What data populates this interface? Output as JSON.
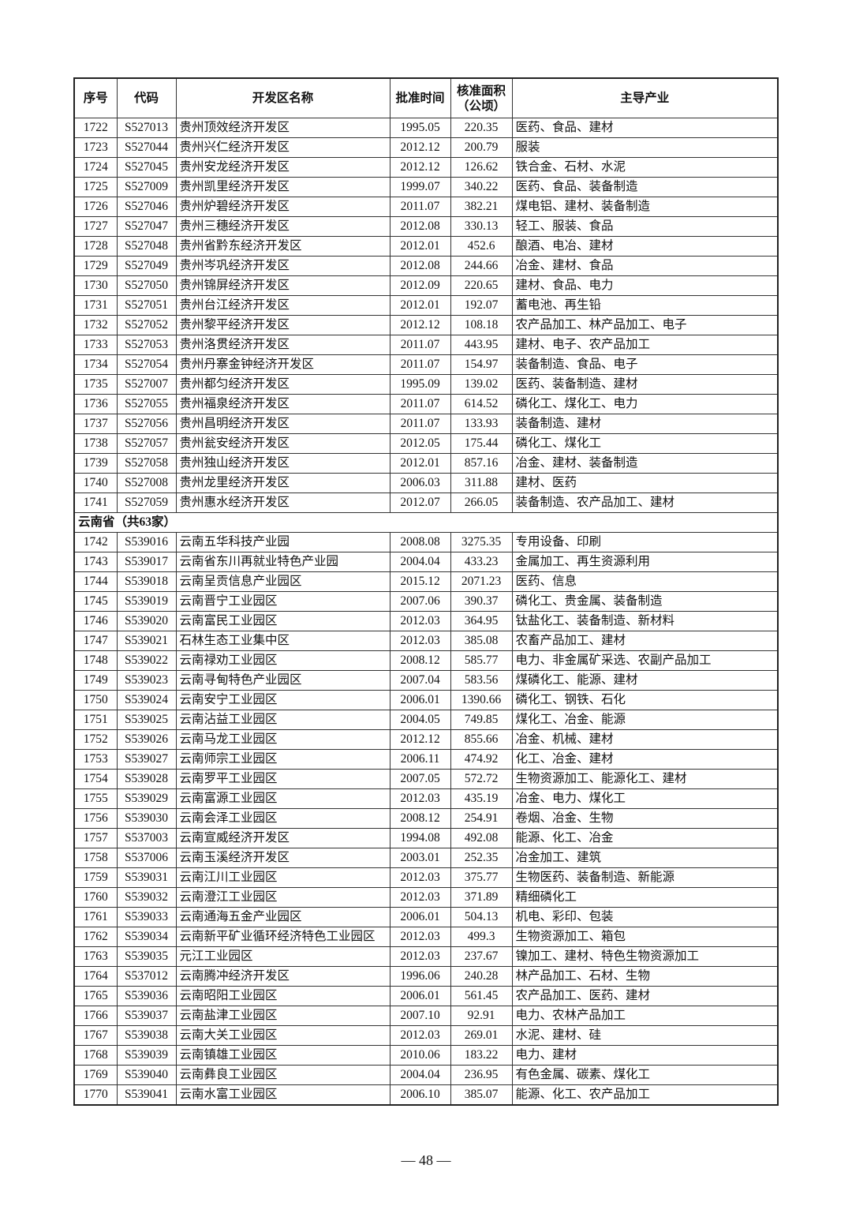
{
  "table": {
    "headers": [
      "序号",
      "代码",
      "开发区名称",
      "批准时间",
      "核准面积\n（公顷）",
      "主导产业"
    ],
    "header_area_line1": "核准面积",
    "header_area_line2": "（公顷）",
    "rows": [
      {
        "no": "1722",
        "code": "S527013",
        "name": "贵州顶效经济开发区",
        "date": "1995.05",
        "area": "220.35",
        "industry": "医药、食品、建材"
      },
      {
        "no": "1723",
        "code": "S527044",
        "name": "贵州兴仁经济开发区",
        "date": "2012.12",
        "area": "200.79",
        "industry": "服装"
      },
      {
        "no": "1724",
        "code": "S527045",
        "name": "贵州安龙经济开发区",
        "date": "2012.12",
        "area": "126.62",
        "industry": "铁合金、石材、水泥"
      },
      {
        "no": "1725",
        "code": "S527009",
        "name": "贵州凯里经济开发区",
        "date": "1999.07",
        "area": "340.22",
        "industry": "医药、食品、装备制造"
      },
      {
        "no": "1726",
        "code": "S527046",
        "name": "贵州炉碧经济开发区",
        "date": "2011.07",
        "area": "382.21",
        "industry": "煤电铝、建材、装备制造"
      },
      {
        "no": "1727",
        "code": "S527047",
        "name": "贵州三穗经济开发区",
        "date": "2012.08",
        "area": "330.13",
        "industry": "轻工、服装、食品"
      },
      {
        "no": "1728",
        "code": "S527048",
        "name": "贵州省黔东经济开发区",
        "date": "2012.01",
        "area": "452.6",
        "industry": "酿酒、电冶、建材"
      },
      {
        "no": "1729",
        "code": "S527049",
        "name": "贵州岑巩经济开发区",
        "date": "2012.08",
        "area": "244.66",
        "industry": "冶金、建材、食品"
      },
      {
        "no": "1730",
        "code": "S527050",
        "name": "贵州锦屏经济开发区",
        "date": "2012.09",
        "area": "220.65",
        "industry": "建材、食品、电力"
      },
      {
        "no": "1731",
        "code": "S527051",
        "name": "贵州台江经济开发区",
        "date": "2012.01",
        "area": "192.07",
        "industry": "蓄电池、再生铅"
      },
      {
        "no": "1732",
        "code": "S527052",
        "name": "贵州黎平经济开发区",
        "date": "2012.12",
        "area": "108.18",
        "industry": "农产品加工、林产品加工、电子"
      },
      {
        "no": "1733",
        "code": "S527053",
        "name": "贵州洛贯经济开发区",
        "date": "2011.07",
        "area": "443.95",
        "industry": "建材、电子、农产品加工"
      },
      {
        "no": "1734",
        "code": "S527054",
        "name": "贵州丹寨金钟经济开发区",
        "date": "2011.07",
        "area": "154.97",
        "industry": "装备制造、食品、电子"
      },
      {
        "no": "1735",
        "code": "S527007",
        "name": "贵州都匀经济开发区",
        "date": "1995.09",
        "area": "139.02",
        "industry": "医药、装备制造、建材"
      },
      {
        "no": "1736",
        "code": "S527055",
        "name": "贵州福泉经济开发区",
        "date": "2011.07",
        "area": "614.52",
        "industry": "磷化工、煤化工、电力"
      },
      {
        "no": "1737",
        "code": "S527056",
        "name": "贵州昌明经济开发区",
        "date": "2011.07",
        "area": "133.93",
        "industry": "装备制造、建材"
      },
      {
        "no": "1738",
        "code": "S527057",
        "name": "贵州瓮安经济开发区",
        "date": "2012.05",
        "area": "175.44",
        "industry": "磷化工、煤化工"
      },
      {
        "no": "1739",
        "code": "S527058",
        "name": "贵州独山经济开发区",
        "date": "2012.01",
        "area": "857.16",
        "industry": "冶金、建材、装备制造"
      },
      {
        "no": "1740",
        "code": "S527008",
        "name": "贵州龙里经济开发区",
        "date": "2006.03",
        "area": "311.88",
        "industry": "建材、医药"
      },
      {
        "no": "1741",
        "code": "S527059",
        "name": "贵州惠水经济开发区",
        "date": "2012.07",
        "area": "266.05",
        "industry": "装备制造、农产品加工、建材"
      },
      {
        "province": "云南省（共63家）"
      },
      {
        "no": "1742",
        "code": "S539016",
        "name": "云南五华科技产业园",
        "date": "2008.08",
        "area": "3275.35",
        "industry": "专用设备、印刷"
      },
      {
        "no": "1743",
        "code": "S539017",
        "name": "云南省东川再就业特色产业园",
        "date": "2004.04",
        "area": "433.23",
        "industry": "金属加工、再生资源利用"
      },
      {
        "no": "1744",
        "code": "S539018",
        "name": "云南呈贡信息产业园区",
        "date": "2015.12",
        "area": "2071.23",
        "industry": "医药、信息"
      },
      {
        "no": "1745",
        "code": "S539019",
        "name": "云南晋宁工业园区",
        "date": "2007.06",
        "area": "390.37",
        "industry": "磷化工、贵金属、装备制造"
      },
      {
        "no": "1746",
        "code": "S539020",
        "name": "云南富民工业园区",
        "date": "2012.03",
        "area": "364.95",
        "industry": "钛盐化工、装备制造、新材料"
      },
      {
        "no": "1747",
        "code": "S539021",
        "name": "石林生态工业集中区",
        "date": "2012.03",
        "area": "385.08",
        "industry": "农畜产品加工、建材"
      },
      {
        "no": "1748",
        "code": "S539022",
        "name": "云南禄劝工业园区",
        "date": "2008.12",
        "area": "585.77",
        "industry": "电力、非金属矿采选、农副产品加工"
      },
      {
        "no": "1749",
        "code": "S539023",
        "name": "云南寻甸特色产业园区",
        "date": "2007.04",
        "area": "583.56",
        "industry": "煤磷化工、能源、建材"
      },
      {
        "no": "1750",
        "code": "S539024",
        "name": "云南安宁工业园区",
        "date": "2006.01",
        "area": "1390.66",
        "industry": "磷化工、钢铁、石化"
      },
      {
        "no": "1751",
        "code": "S539025",
        "name": "云南沾益工业园区",
        "date": "2004.05",
        "area": "749.85",
        "industry": "煤化工、冶金、能源"
      },
      {
        "no": "1752",
        "code": "S539026",
        "name": "云南马龙工业园区",
        "date": "2012.12",
        "area": "855.66",
        "industry": "冶金、机械、建材"
      },
      {
        "no": "1753",
        "code": "S539027",
        "name": "云南师宗工业园区",
        "date": "2006.11",
        "area": "474.92",
        "industry": "化工、冶金、建材"
      },
      {
        "no": "1754",
        "code": "S539028",
        "name": "云南罗平工业园区",
        "date": "2007.05",
        "area": "572.72",
        "industry": "生物资源加工、能源化工、建材"
      },
      {
        "no": "1755",
        "code": "S539029",
        "name": "云南富源工业园区",
        "date": "2012.03",
        "area": "435.19",
        "industry": "冶金、电力、煤化工"
      },
      {
        "no": "1756",
        "code": "S539030",
        "name": "云南会泽工业园区",
        "date": "2008.12",
        "area": "254.91",
        "industry": "卷烟、冶金、生物"
      },
      {
        "no": "1757",
        "code": "S537003",
        "name": "云南宣威经济开发区",
        "date": "1994.08",
        "area": "492.08",
        "industry": "能源、化工、冶金"
      },
      {
        "no": "1758",
        "code": "S537006",
        "name": "云南玉溪经济开发区",
        "date": "2003.01",
        "area": "252.35",
        "industry": "冶金加工、建筑"
      },
      {
        "no": "1759",
        "code": "S539031",
        "name": "云南江川工业园区",
        "date": "2012.03",
        "area": "375.77",
        "industry": "生物医药、装备制造、新能源"
      },
      {
        "no": "1760",
        "code": "S539032",
        "name": "云南澄江工业园区",
        "date": "2012.03",
        "area": "371.89",
        "industry": "精细磷化工"
      },
      {
        "no": "1761",
        "code": "S539033",
        "name": "云南通海五金产业园区",
        "date": "2006.01",
        "area": "504.13",
        "industry": "机电、彩印、包装"
      },
      {
        "no": "1762",
        "code": "S539034",
        "name": "云南新平矿业循环经济特色工业园区",
        "date": "2012.03",
        "area": "499.3",
        "industry": "生物资源加工、箱包"
      },
      {
        "no": "1763",
        "code": "S539035",
        "name": "元江工业园区",
        "date": "2012.03",
        "area": "237.67",
        "industry": "镍加工、建材、特色生物资源加工"
      },
      {
        "no": "1764",
        "code": "S537012",
        "name": "云南腾冲经济开发区",
        "date": "1996.06",
        "area": "240.28",
        "industry": "林产品加工、石材、生物"
      },
      {
        "no": "1765",
        "code": "S539036",
        "name": "云南昭阳工业园区",
        "date": "2006.01",
        "area": "561.45",
        "industry": "农产品加工、医药、建材"
      },
      {
        "no": "1766",
        "code": "S539037",
        "name": "云南盐津工业园区",
        "date": "2007.10",
        "area": "92.91",
        "industry": "电力、农林产品加工"
      },
      {
        "no": "1767",
        "code": "S539038",
        "name": "云南大关工业园区",
        "date": "2012.03",
        "area": "269.01",
        "industry": "水泥、建材、硅"
      },
      {
        "no": "1768",
        "code": "S539039",
        "name": "云南镇雄工业园区",
        "date": "2010.06",
        "area": "183.22",
        "industry": "电力、建材"
      },
      {
        "no": "1769",
        "code": "S539040",
        "name": "云南彝良工业园区",
        "date": "2004.04",
        "area": "236.95",
        "industry": "有色金属、碳素、煤化工"
      },
      {
        "no": "1770",
        "code": "S539041",
        "name": "云南水富工业园区",
        "date": "2006.10",
        "area": "385.07",
        "industry": "能源、化工、农产品加工"
      }
    ]
  },
  "footer": {
    "page_number": "— 48 —"
  }
}
